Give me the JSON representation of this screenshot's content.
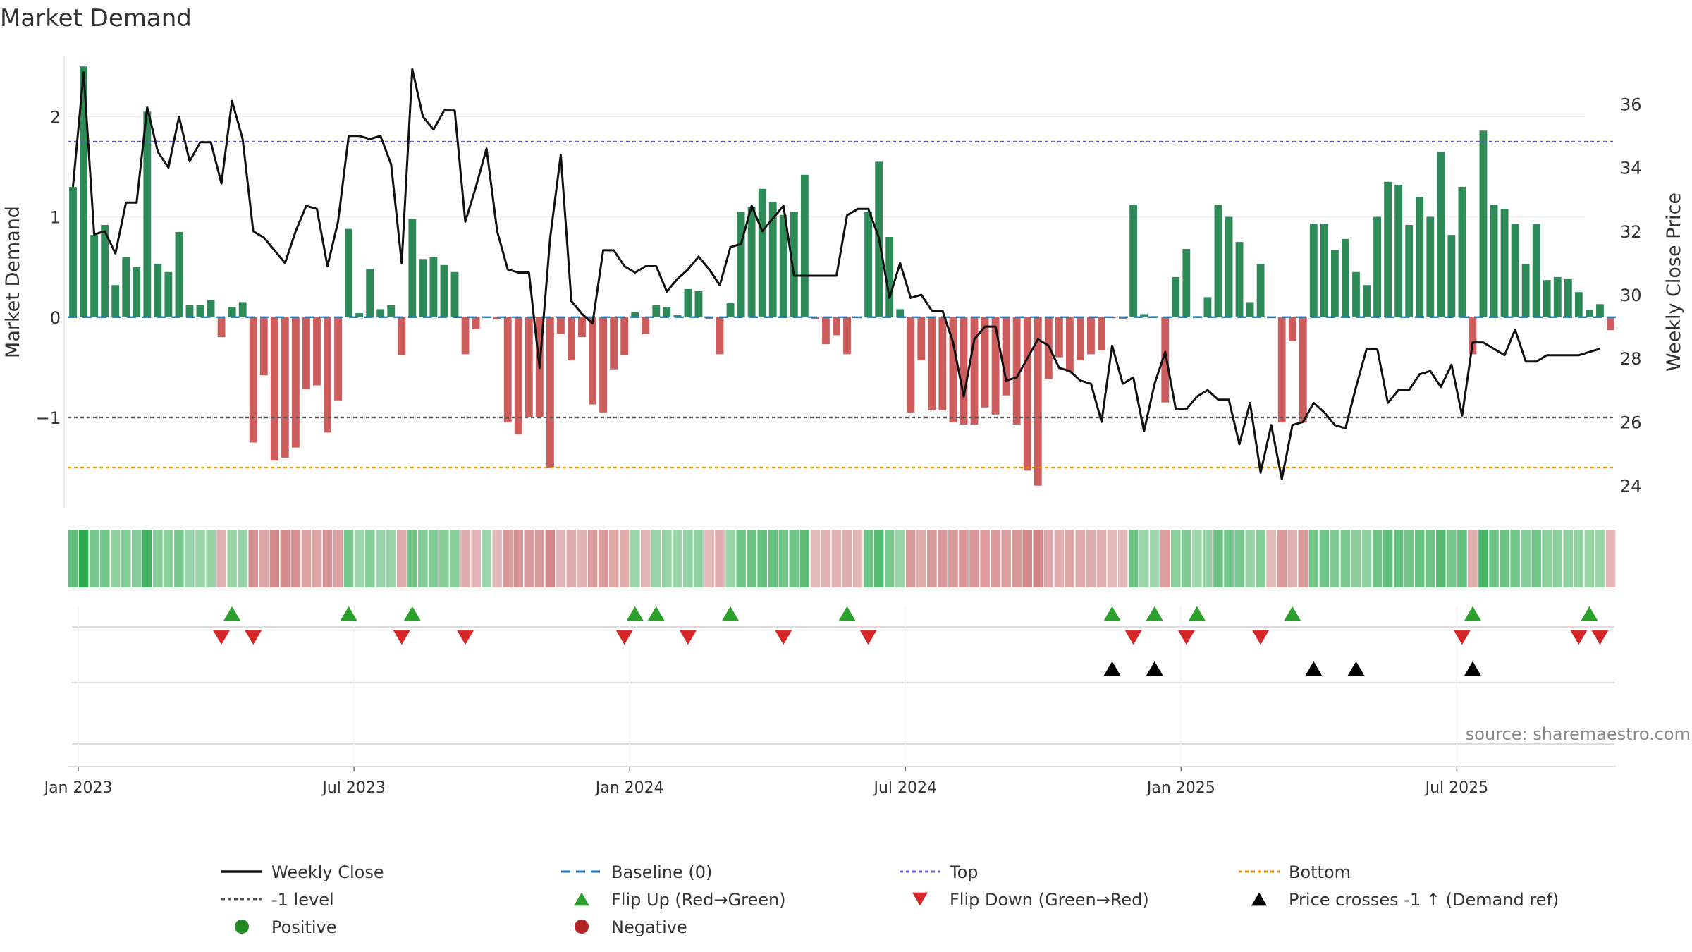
{
  "chart_data": {
    "type": "bar",
    "title": "Market Demand",
    "ylabel_left": "Market Demand",
    "ylabel_right": "Weekly Close Price",
    "left_ylim": [
      -1.9,
      2.6
    ],
    "right_ylim": [
      23.3,
      37.5
    ],
    "left_yticks": [
      {
        "v": 2,
        "label": "2"
      },
      {
        "v": 1,
        "label": "1"
      },
      {
        "v": 0,
        "label": "0"
      },
      {
        "v": -1,
        "label": "−1"
      }
    ],
    "right_yticks": [
      24,
      26,
      28,
      30,
      32,
      34,
      36
    ],
    "x_tick_labels": [
      "Jan 2023",
      "Jul 2023",
      "Jan 2024",
      "Jul 2024",
      "Jan 2025",
      "Jul 2025"
    ],
    "x_tick_weeks": [
      1,
      27,
      53,
      79,
      105,
      131
    ],
    "reference_lines": {
      "top": 1.75,
      "bottom": -1.5,
      "minus_one": -1,
      "baseline": 0
    },
    "demand": [
      1.3,
      2.5,
      0.82,
      0.92,
      0.32,
      0.6,
      0.5,
      2.05,
      0.53,
      0.45,
      0.85,
      0.12,
      0.12,
      0.17,
      -0.2,
      0.1,
      0.15,
      -1.25,
      -0.58,
      -1.43,
      -1.4,
      -1.3,
      -0.72,
      -0.68,
      -1.15,
      -0.83,
      0.88,
      0.04,
      0.48,
      0.08,
      0.12,
      -0.38,
      0.98,
      0.58,
      0.6,
      0.52,
      0.45,
      -0.37,
      -0.12,
      0,
      -0.02,
      -1.05,
      -1.17,
      -1.0,
      -1.0,
      -1.5,
      -0.17,
      -0.43,
      -0.2,
      -0.87,
      -0.95,
      -0.52,
      -0.38,
      0.05,
      -0.17,
      0.12,
      0.1,
      0.02,
      0.28,
      0.26,
      -0.02,
      -0.37,
      0.14,
      1.05,
      1.1,
      1.28,
      1.15,
      1.02,
      1.05,
      1.42,
      -0.02,
      -0.27,
      -0.18,
      -0.37,
      -0.01,
      1.05,
      1.55,
      0.8,
      0.08,
      -0.95,
      -0.43,
      -0.93,
      -0.93,
      -1.05,
      -1.07,
      -1.07,
      -0.9,
      -0.97,
      -0.78,
      -1.07,
      -1.53,
      -1.68,
      -0.62,
      -0.4,
      -0.55,
      -0.43,
      -0.37,
      -0.33,
      -0.01,
      -0.02,
      1.12,
      0.03,
      0.01,
      -0.85,
      0.4,
      0.68,
      0.01,
      0.2,
      1.12,
      1.0,
      0.75,
      0.15,
      0.53,
      -0.01,
      -1.05,
      -0.24,
      -1.05,
      0.93,
      0.93,
      0.67,
      0.78,
      0.45,
      0.32,
      1.0,
      1.35,
      1.32,
      0.92,
      1.2,
      1.0,
      1.65,
      0.82,
      1.3,
      -0.37,
      1.86,
      1.12,
      1.08,
      0.93,
      0.53,
      0.93,
      0.37,
      0.4,
      0.38,
      0.25,
      0.07,
      0.13,
      -0.13
    ],
    "weekly_close": [
      33.4,
      37.0,
      31.9,
      32.0,
      31.3,
      32.9,
      32.9,
      35.9,
      34.5,
      34.0,
      35.6,
      34.2,
      34.8,
      34.8,
      33.5,
      36.1,
      34.9,
      32.0,
      31.8,
      31.4,
      31.0,
      32.0,
      32.8,
      32.7,
      30.9,
      32.3,
      35.0,
      35.0,
      34.9,
      35.0,
      34.1,
      31.0,
      37.1,
      35.6,
      35.2,
      35.8,
      35.8,
      32.3,
      33.4,
      34.6,
      32.0,
      30.8,
      30.7,
      30.7,
      27.7,
      31.8,
      34.4,
      29.8,
      29.4,
      29.1,
      31.4,
      31.4,
      30.9,
      30.7,
      30.9,
      30.9,
      30.1,
      30.5,
      30.8,
      31.2,
      30.8,
      30.3,
      31.5,
      31.6,
      32.8,
      32.0,
      32.4,
      32.8,
      30.6,
      30.6,
      30.6,
      30.6,
      30.6,
      32.5,
      32.7,
      32.7,
      31.8,
      29.9,
      31.0,
      29.9,
      30.0,
      29.5,
      29.5,
      28.5,
      26.8,
      28.6,
      29.0,
      29.0,
      27.3,
      27.4,
      28.0,
      28.6,
      28.4,
      27.7,
      27.6,
      27.3,
      27.2,
      26.0,
      28.4,
      27.2,
      27.4,
      25.7,
      27.2,
      28.2,
      26.4,
      26.4,
      26.8,
      27.0,
      26.7,
      26.7,
      25.3,
      26.6,
      24.4,
      25.9,
      24.2,
      25.9,
      26.0,
      26.6,
      26.3,
      25.9,
      25.8,
      27.1,
      28.3,
      28.3,
      26.6,
      27.0,
      27.0,
      27.5,
      27.6,
      27.1,
      27.8,
      26.2,
      28.5,
      28.5,
      28.3,
      28.1,
      28.9,
      27.9,
      27.9,
      28.1,
      28.1,
      28.1,
      28.1,
      28.2,
      28.3
    ],
    "flip_up_weeks": [
      15,
      26,
      32,
      53,
      55,
      62,
      73,
      98,
      102,
      106,
      115,
      132,
      143
    ],
    "flip_down_weeks": [
      14,
      17,
      31,
      37,
      52,
      58,
      67,
      75,
      100,
      105,
      112,
      131,
      142,
      144
    ],
    "price_cross_weeks": [
      98,
      102,
      117,
      121,
      132
    ],
    "legend": [
      "Weekly Close",
      "Baseline (0)",
      "Top",
      "Bottom",
      "-1 level",
      "Flip Up (Red→Green)",
      "Flip Down (Green→Red)",
      "Price crosses -1 ↑ (Demand ref)",
      "Positive",
      "Negative"
    ],
    "annotation": "source: sharemaestro.com",
    "colors": {
      "positive_bar": "#2e8b57",
      "negative_bar": "#cd5c5c",
      "close_line": "#111111",
      "baseline": "#1f77b4",
      "top": "#6a5acd",
      "bottom": "#e69500",
      "minus_one": "#555555",
      "flip_up": "#2ca02c",
      "flip_down": "#d62728",
      "price_cross": "#000000",
      "positive_dot": "#228b22",
      "negative_dot": "#b22222",
      "annotation": "#888888"
    }
  }
}
